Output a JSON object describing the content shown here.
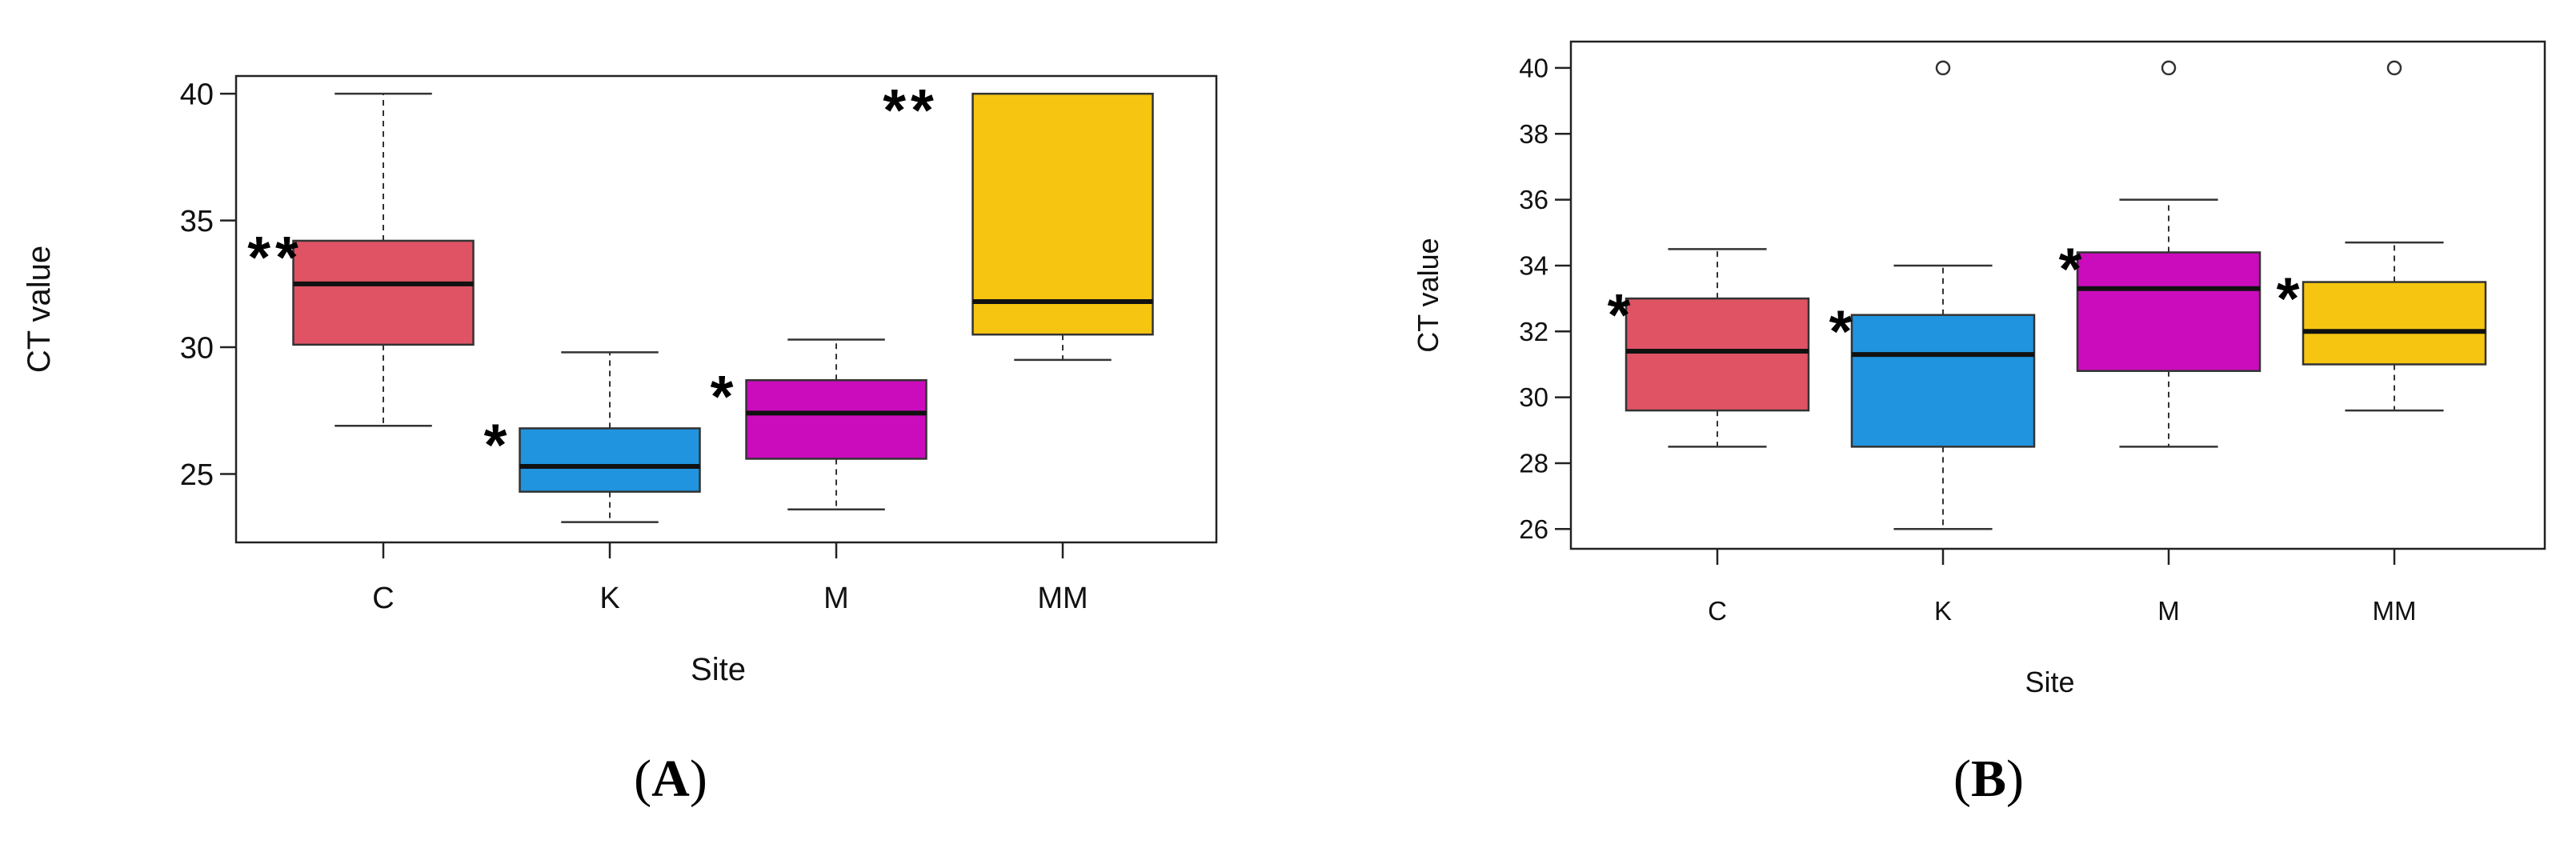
{
  "chart_data": [
    {
      "type": "box",
      "panel_label": "(A)",
      "xlabel": "Site",
      "ylabel": "CT value",
      "categories": [
        "C",
        "K",
        "M",
        "MM"
      ],
      "yticks": [
        25,
        30,
        35,
        40
      ],
      "ylim": [
        22.3,
        40.7
      ],
      "colors": [
        "#df5365",
        "#2194e0",
        "#cb0cbc",
        "#f5c511"
      ],
      "boxes": [
        {
          "category": "C",
          "min": 26.9,
          "q1": 30.1,
          "median": 32.5,
          "q3": 34.2,
          "max": 40.0,
          "outliers": [],
          "significance": "**"
        },
        {
          "category": "K",
          "min": 23.1,
          "q1": 24.3,
          "median": 25.3,
          "q3": 26.8,
          "max": 29.8,
          "outliers": [],
          "significance": "*"
        },
        {
          "category": "M",
          "min": 23.6,
          "q1": 25.6,
          "median": 27.4,
          "q3": 28.7,
          "max": 30.3,
          "outliers": [],
          "significance": "*"
        },
        {
          "category": "MM",
          "min": 29.5,
          "q1": 30.5,
          "median": 31.8,
          "q3": 40.0,
          "max": 40.0,
          "outliers": [],
          "significance": "**"
        }
      ]
    },
    {
      "type": "box",
      "panel_label": "(B)",
      "xlabel": "Site",
      "ylabel": "CT value",
      "categories": [
        "C",
        "K",
        "M",
        "MM"
      ],
      "yticks": [
        26,
        28,
        30,
        32,
        34,
        36,
        38,
        40
      ],
      "ylim": [
        25.4,
        40.8
      ],
      "colors": [
        "#df5365",
        "#2194e0",
        "#cb0cbc",
        "#f5c511"
      ],
      "boxes": [
        {
          "category": "C",
          "min": 28.5,
          "q1": 29.6,
          "median": 31.4,
          "q3": 33.0,
          "max": 34.5,
          "outliers": [],
          "significance": "*"
        },
        {
          "category": "K",
          "min": 26.0,
          "q1": 28.5,
          "median": 31.3,
          "q3": 32.5,
          "max": 34.0,
          "outliers": [
            40
          ],
          "significance": "*"
        },
        {
          "category": "M",
          "min": 28.5,
          "q1": 30.8,
          "median": 33.3,
          "q3": 34.4,
          "max": 36.0,
          "outliers": [
            40
          ],
          "significance": "*"
        },
        {
          "category": "MM",
          "min": 29.6,
          "q1": 31.0,
          "median": 32.0,
          "q3": 33.5,
          "max": 34.7,
          "outliers": [
            40
          ],
          "significance": "*"
        }
      ]
    }
  ]
}
